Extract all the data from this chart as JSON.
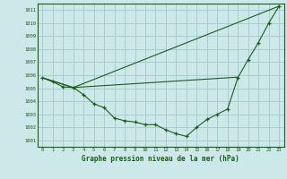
{
  "title": "Graphe pression niveau de la mer (hPa)",
  "bg_color": "#cce8e8",
  "grid_color": "#aacccc",
  "line_color": "#1a5c1a",
  "xlim": [
    -0.5,
    23.5
  ],
  "ylim": [
    1000.5,
    1011.5
  ],
  "yticks": [
    1001,
    1002,
    1003,
    1004,
    1005,
    1006,
    1007,
    1008,
    1009,
    1010,
    1011
  ],
  "xticks": [
    0,
    1,
    2,
    3,
    4,
    5,
    6,
    7,
    8,
    9,
    10,
    11,
    12,
    13,
    14,
    15,
    16,
    17,
    18,
    19,
    20,
    21,
    22,
    23
  ],
  "series1_x": [
    0,
    1,
    2,
    3,
    4,
    5,
    6,
    7,
    8,
    9,
    10,
    11,
    12,
    13,
    14,
    15,
    16,
    17,
    18,
    19,
    20,
    21,
    22,
    23
  ],
  "series1_y": [
    1005.8,
    1005.5,
    1005.1,
    1005.05,
    1004.5,
    1003.8,
    1003.5,
    1002.7,
    1002.5,
    1002.4,
    1002.2,
    1002.2,
    1001.8,
    1001.5,
    1001.3,
    1002.0,
    1002.6,
    1003.0,
    1003.4,
    1005.8,
    1007.2,
    1008.5,
    1010.0,
    1011.3
  ],
  "series2_x": [
    0,
    3,
    23
  ],
  "series2_y": [
    1005.8,
    1005.05,
    1011.3
  ],
  "series3_x": [
    0,
    3,
    4,
    5,
    6,
    7,
    8,
    9,
    10,
    11,
    12,
    13,
    14,
    15,
    16,
    17,
    18,
    19
  ],
  "series3_y": [
    1005.8,
    1005.05,
    1005.1,
    1005.15,
    1005.2,
    1005.25,
    1005.3,
    1005.35,
    1005.4,
    1005.45,
    1005.5,
    1005.55,
    1005.6,
    1005.65,
    1005.7,
    1005.75,
    1005.8,
    1005.85
  ]
}
